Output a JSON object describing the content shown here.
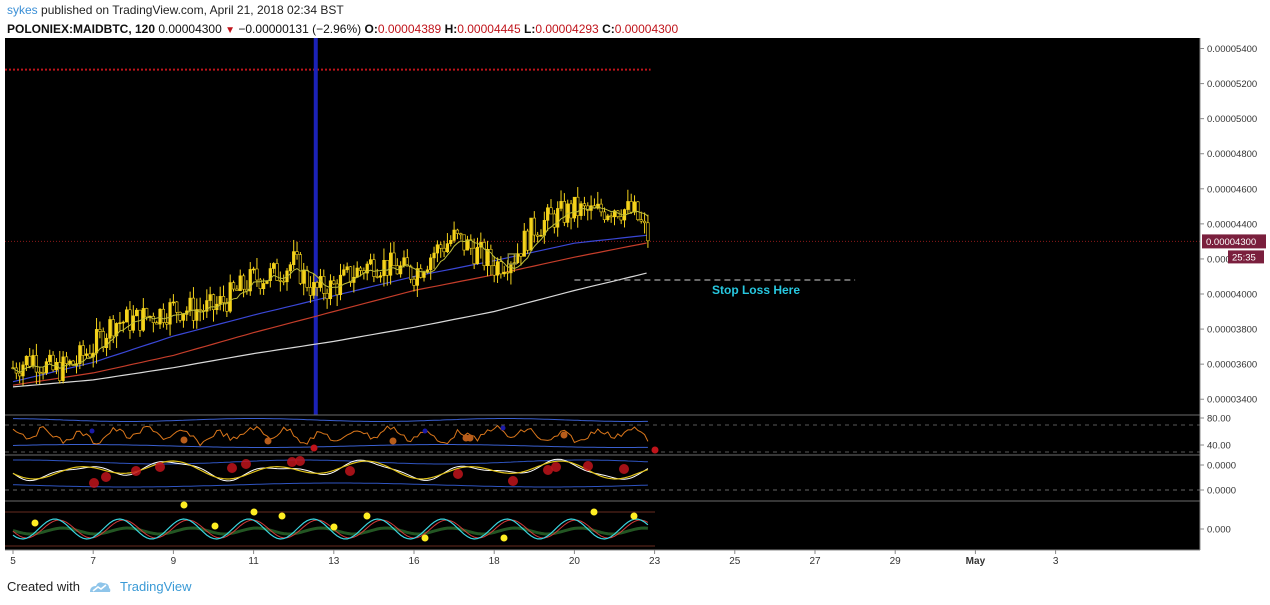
{
  "header": {
    "user": "sykes",
    "published_text": "published on TradingView.com, April 21, 2018 02:34 BST"
  },
  "ohlc": {
    "symbol": "POLONIEX:MAIDBTC, 120",
    "last": "0.00004300",
    "change": "−0.00000131 (−2.96%)",
    "o_label": "O:",
    "o": "0.00004389",
    "h_label": "H:",
    "h": "0.00004445",
    "l_label": "L:",
    "l": "0.00004293",
    "c_label": "C:",
    "c": "0.00004300"
  },
  "footer": {
    "created_with": "Created with",
    "brand": "TradingView"
  },
  "colors": {
    "background": "#000000",
    "candle": "#f5d31b",
    "ma_fast": "#bfbf3a",
    "ma_blue": "#3a47d6",
    "ma_red": "#c43d2a",
    "ma_white": "#d9d9d9",
    "marker_red": "#c0141b",
    "marker_blue": "#1a1aa8",
    "stop_loss_text": "#27c8e0",
    "price_tag": "#7a1f3d"
  },
  "chart_data": {
    "type": "candlestick",
    "symbol": "POLONIEX:MAIDBTC",
    "interval": "120",
    "ylim": [
      3.31e-05,
      5.46e-05
    ],
    "y_ticks": [
      "0.00005400",
      "0.00005200",
      "0.00005000",
      "0.00004800",
      "0.00004600",
      "0.00004400",
      "0.00004300",
      "0.00004200",
      "0.00004000",
      "0.00003800",
      "0.00003600",
      "0.00003400"
    ],
    "x_ticks": [
      "5",
      "7",
      "9",
      "11",
      "13",
      "16",
      "18",
      "20",
      "23",
      "25",
      "27",
      "29",
      "May",
      "3"
    ],
    "x_tick_days": [
      5,
      7,
      9,
      11,
      13,
      15,
      17,
      19,
      21,
      23,
      25,
      27,
      29,
      31
    ],
    "current_price": "0.00004300",
    "countdown": "25:35",
    "upper_red_dotted_level": 5.28e-05,
    "current_price_level": 4.3e-05,
    "vertical_marker_day": 12.55,
    "stop_loss": {
      "level": 4.08e-05,
      "from_day": 19.0,
      "to_day": 26.0,
      "label": "Stop Loss Here"
    },
    "candles_sampled": {
      "days": [
        5.0,
        5.5,
        6.0,
        6.5,
        7.0,
        7.5,
        8.0,
        8.5,
        9.0,
        9.5,
        10.0,
        10.5,
        11.0,
        11.5,
        12.0,
        12.5,
        13.0,
        13.5,
        14.0,
        14.5,
        15.0,
        15.5,
        16.0,
        16.5,
        17.0,
        17.5,
        18.0,
        18.5,
        19.0,
        19.5,
        20.0,
        20.5,
        20.9
      ],
      "close": [
        3.58e-05,
        3.64e-05,
        3.56e-05,
        3.6e-05,
        3.7e-05,
        3.84e-05,
        3.85e-05,
        3.88e-05,
        3.92e-05,
        3.91e-05,
        3.92e-05,
        4e-05,
        4.09e-05,
        4.11e-05,
        4.18e-05,
        4.02e-05,
        4.04e-05,
        4.12e-05,
        4.18e-05,
        4.15e-05,
        4.12e-05,
        4.24e-05,
        4.32e-05,
        4.25e-05,
        4.16e-05,
        4.22e-05,
        4.38e-05,
        4.44e-05,
        4.48e-05,
        4.46e-05,
        4.5e-05,
        4.46e-05,
        4.3e-05
      ]
    },
    "moving_averages": {
      "days": [
        5,
        7,
        9,
        11,
        13,
        15,
        17,
        19,
        21
      ],
      "ma_blue": [
        3.5e-05,
        3.61e-05,
        3.76e-05,
        3.88e-05,
        3.99e-05,
        4.1e-05,
        4.19e-05,
        4.29e-05,
        4.34e-05
      ],
      "ma_red": [
        3.48e-05,
        3.55e-05,
        3.65e-05,
        3.78e-05,
        3.9e-05,
        4.02e-05,
        4.11e-05,
        4.21e-05,
        4.3e-05
      ],
      "ma_white": [
        3.47e-05,
        3.51e-05,
        3.58e-05,
        3.66e-05,
        3.73e-05,
        3.81e-05,
        3.9e-05,
        4.02e-05,
        4.13e-05
      ]
    },
    "rsi_panel": {
      "ticks": [
        "80.00",
        "40.00"
      ]
    },
    "osc_panel_1": {
      "ticks": [
        "0.0000",
        "0.0000"
      ]
    },
    "osc_panel_2": {
      "ticks": [
        "0.000"
      ]
    }
  }
}
